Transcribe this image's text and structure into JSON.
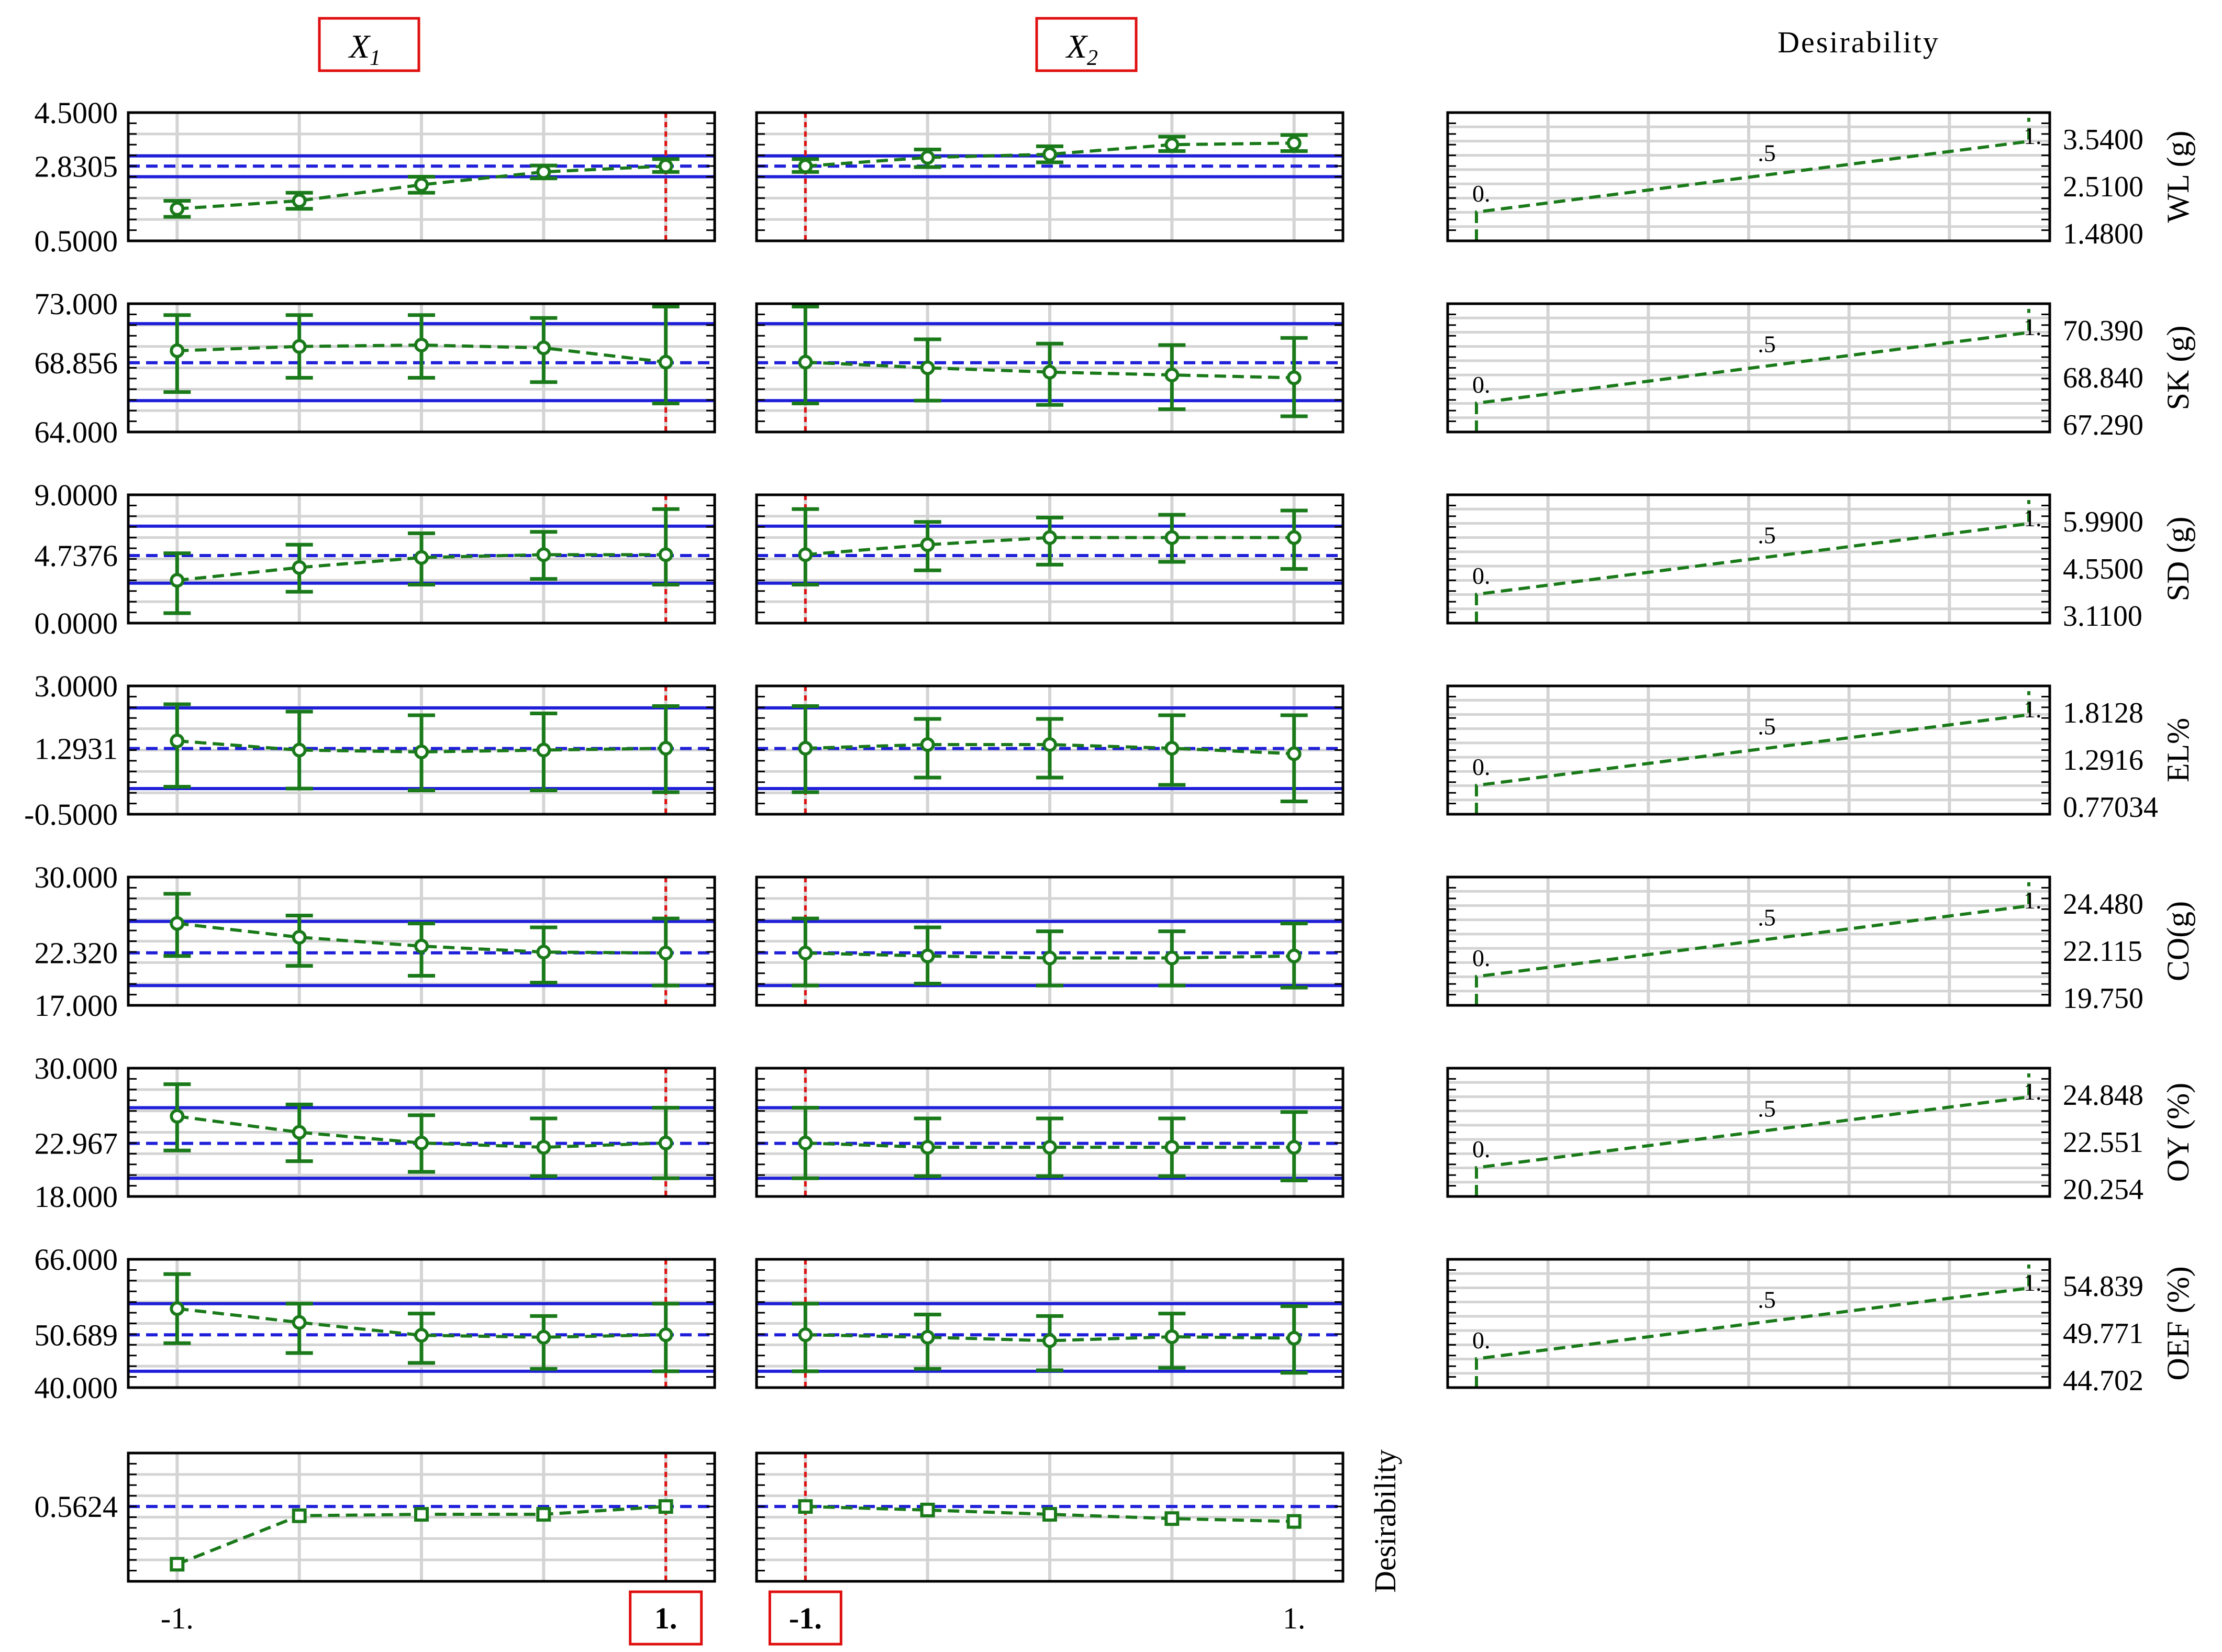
{
  "headers": {
    "x1": {
      "main": "X",
      "sub": "1"
    },
    "x2": {
      "main": "X",
      "sub": "2"
    },
    "desirability": "Desirability"
  },
  "overall_desirability_label": "Desirability",
  "x_ticks": [
    -1,
    -0.5,
    0,
    0.5,
    1
  ],
  "x_axis_labels": {
    "x1": [
      "-1.",
      "1."
    ],
    "x2": [
      "-1.",
      "1."
    ]
  },
  "current_settings": {
    "x1": 1,
    "x2": -1
  },
  "colors": {
    "series": "#1a7a1a",
    "limits": "#1f1fd9",
    "current": "#e01010",
    "highlight_box": "#e01010",
    "grid": "#d4d4d4",
    "frame": "#000000"
  },
  "chart_data": [
    {
      "type": "line",
      "response": "WL (g)",
      "ylim": [
        0.5,
        4.5
      ],
      "ytick_labels": [
        "4.5000",
        "2.8305",
        "0.5000"
      ],
      "ytick_values": [
        4.5,
        2.8305,
        0.5
      ],
      "current_prediction": 2.8305,
      "limits": [
        3.15,
        2.5
      ],
      "x1": {
        "x": [
          -1,
          -0.5,
          0,
          0.5,
          1
        ],
        "y": [
          1.5,
          1.75,
          2.25,
          2.65,
          2.83
        ],
        "lower": [
          1.25,
          1.5,
          2.0,
          2.45,
          2.65
        ],
        "upper": [
          1.75,
          2.0,
          2.5,
          2.85,
          3.05
        ]
      },
      "x2": {
        "x": [
          -1,
          -0.5,
          0,
          0.5,
          1
        ],
        "y": [
          2.83,
          3.1,
          3.2,
          3.5,
          3.55
        ],
        "lower": [
          2.65,
          2.8,
          2.95,
          3.3,
          3.3
        ],
        "upper": [
          3.05,
          3.35,
          3.45,
          3.75,
          3.8
        ]
      },
      "desirability": {
        "ticks": [
          "3.5400",
          "2.5100",
          "1.4800"
        ],
        "label_0": "0.",
        "label_mid": ".5",
        "label_1": "1."
      }
    },
    {
      "type": "line",
      "response": "SK (g)",
      "ylim": [
        64,
        73
      ],
      "ytick_labels": [
        "73.000",
        "68.856",
        "64.000"
      ],
      "ytick_values": [
        73,
        68.856,
        64
      ],
      "current_prediction": 68.856,
      "limits": [
        71.6,
        66.2
      ],
      "x1": {
        "x": [
          -1,
          -0.5,
          0,
          0.5,
          1
        ],
        "y": [
          69.7,
          70.0,
          70.1,
          69.9,
          68.9
        ],
        "lower": [
          66.8,
          67.8,
          67.8,
          67.5,
          66.0
        ],
        "upper": [
          72.2,
          72.2,
          72.2,
          72.0,
          72.8
        ]
      },
      "x2": {
        "x": [
          -1,
          -0.5,
          0,
          0.5,
          1
        ],
        "y": [
          68.9,
          68.5,
          68.2,
          68.0,
          67.8
        ],
        "lower": [
          66.0,
          66.2,
          65.9,
          65.6,
          65.1
        ],
        "upper": [
          72.8,
          70.5,
          70.2,
          70.1,
          70.6
        ]
      },
      "desirability": {
        "ticks": [
          "70.390",
          "68.840",
          "67.290"
        ],
        "label_0": "0.",
        "label_mid": ".5",
        "label_1": "1."
      }
    },
    {
      "type": "line",
      "response": "SD (g)",
      "ylim": [
        0,
        9
      ],
      "ytick_labels": [
        "9.0000",
        "4.7376",
        "0.0000"
      ],
      "ytick_values": [
        9,
        4.7376,
        0
      ],
      "current_prediction": 4.7376,
      "limits": [
        6.8,
        2.8
      ],
      "x1": {
        "x": [
          -1,
          -0.5,
          0,
          0.5,
          1
        ],
        "y": [
          3.0,
          3.9,
          4.6,
          4.8,
          4.8
        ],
        "lower": [
          0.7,
          2.2,
          2.7,
          3.1,
          2.7
        ],
        "upper": [
          4.9,
          5.5,
          6.3,
          6.4,
          8.0
        ]
      },
      "x2": {
        "x": [
          -1,
          -0.5,
          0,
          0.5,
          1
        ],
        "y": [
          4.8,
          5.5,
          6.0,
          6.0,
          6.0
        ],
        "lower": [
          2.7,
          3.7,
          4.1,
          4.3,
          3.8
        ],
        "upper": [
          8.0,
          7.1,
          7.4,
          7.6,
          7.9
        ]
      },
      "desirability": {
        "ticks": [
          "5.9900",
          "4.5500",
          "3.1100"
        ],
        "label_0": "0.",
        "label_mid": ".5",
        "label_1": "1."
      }
    },
    {
      "type": "line",
      "response": "EL%",
      "ylim": [
        -0.5,
        3
      ],
      "ytick_labels": [
        "3.0000",
        "1.2931",
        "-0.5000"
      ],
      "ytick_values": [
        3,
        1.2931,
        -0.5
      ],
      "current_prediction": 1.2931,
      "limits": [
        2.4,
        0.2
      ],
      "x1": {
        "x": [
          -1,
          -0.5,
          0,
          0.5,
          1
        ],
        "y": [
          1.5,
          1.25,
          1.2,
          1.25,
          1.3
        ],
        "lower": [
          0.25,
          0.2,
          0.15,
          0.15,
          0.1
        ],
        "upper": [
          2.5,
          2.3,
          2.2,
          2.25,
          2.45
        ]
      },
      "x2": {
        "x": [
          -1,
          -0.5,
          0,
          0.5,
          1
        ],
        "y": [
          1.3,
          1.4,
          1.4,
          1.3,
          1.15
        ],
        "lower": [
          0.1,
          0.5,
          0.5,
          0.3,
          -0.15
        ],
        "upper": [
          2.45,
          2.1,
          2.1,
          2.2,
          2.2
        ]
      },
      "desirability": {
        "ticks": [
          "1.8128",
          "1.2916",
          "0.77034"
        ],
        "label_0": "0.",
        "label_mid": ".5",
        "label_1": "1."
      }
    },
    {
      "type": "line",
      "response": "CO(g)",
      "ylim": [
        17,
        30
      ],
      "ytick_labels": [
        "30.000",
        "22.320",
        "17.000"
      ],
      "ytick_values": [
        30,
        22.32,
        17
      ],
      "current_prediction": 22.32,
      "limits": [
        25.5,
        19.0
      ],
      "x1": {
        "x": [
          -1,
          -0.5,
          0,
          0.5,
          1
        ],
        "y": [
          25.3,
          23.9,
          23.0,
          22.4,
          22.3
        ],
        "lower": [
          22.0,
          21.0,
          20.0,
          19.3,
          19.0
        ],
        "upper": [
          28.3,
          26.1,
          25.3,
          24.9,
          25.8
        ]
      },
      "x2": {
        "x": [
          -1,
          -0.5,
          0,
          0.5,
          1
        ],
        "y": [
          22.3,
          22.0,
          21.8,
          21.8,
          22.0
        ],
        "lower": [
          19.0,
          19.2,
          19.0,
          19.0,
          18.8
        ],
        "upper": [
          25.8,
          24.9,
          24.5,
          24.5,
          25.3
        ]
      },
      "desirability": {
        "ticks": [
          "24.480",
          "22.115",
          "19.750"
        ],
        "label_0": "0.",
        "label_mid": ".5",
        "label_1": "1."
      }
    },
    {
      "type": "line",
      "response": "OY (%)",
      "ylim": [
        18,
        30
      ],
      "ytick_labels": [
        "30.000",
        "22.967",
        "18.000"
      ],
      "ytick_values": [
        30,
        22.967,
        18
      ],
      "current_prediction": 22.967,
      "limits": [
        26.3,
        19.7
      ],
      "x1": {
        "x": [
          -1,
          -0.5,
          0,
          0.5,
          1
        ],
        "y": [
          25.5,
          24.0,
          23.0,
          22.6,
          23.0
        ],
        "lower": [
          22.3,
          21.3,
          20.3,
          19.9,
          19.7
        ],
        "upper": [
          28.5,
          26.6,
          25.6,
          25.3,
          26.3
        ]
      },
      "x2": {
        "x": [
          -1,
          -0.5,
          0,
          0.5,
          1
        ],
        "y": [
          23.0,
          22.6,
          22.6,
          22.6,
          22.6
        ],
        "lower": [
          19.7,
          19.9,
          19.9,
          19.9,
          19.5
        ],
        "upper": [
          26.3,
          25.3,
          25.3,
          25.3,
          25.9
        ]
      },
      "desirability": {
        "ticks": [
          "24.848",
          "22.551",
          "20.254"
        ],
        "label_0": "0.",
        "label_mid": ".5",
        "label_1": "1."
      }
    },
    {
      "type": "line",
      "response": "OEF (%)",
      "ylim": [
        40,
        66
      ],
      "ytick_labels": [
        "66.000",
        "50.689",
        "40.000"
      ],
      "ytick_values": [
        66,
        50.689,
        40
      ],
      "current_prediction": 50.689,
      "limits": [
        57.0,
        43.3
      ],
      "x1": {
        "x": [
          -1,
          -0.5,
          0,
          0.5,
          1
        ],
        "y": [
          56.0,
          53.2,
          50.6,
          50.2,
          50.7
        ],
        "lower": [
          49.0,
          47.0,
          45.0,
          43.8,
          43.3
        ],
        "upper": [
          63.0,
          57.0,
          55.0,
          54.5,
          57.0
        ]
      },
      "x2": {
        "x": [
          -1,
          -0.5,
          0,
          0.5,
          1
        ],
        "y": [
          50.7,
          50.2,
          49.5,
          50.3,
          50.0
        ],
        "lower": [
          43.3,
          43.8,
          43.5,
          44.0,
          43.0
        ],
        "upper": [
          57.0,
          54.8,
          54.5,
          55.0,
          56.5
        ]
      },
      "desirability": {
        "ticks": [
          "54.839",
          "49.771",
          "44.702"
        ],
        "label_0": "0.",
        "label_mid": ".5",
        "label_1": "1."
      }
    },
    {
      "type": "line",
      "response": "Desirability",
      "ylim": [
        0.3,
        0.75
      ],
      "ytick_labels": [
        "0.5624"
      ],
      "ytick_values": [
        0.5624
      ],
      "current_prediction": 0.5624,
      "x1": {
        "x": [
          -1,
          -0.5,
          0,
          0.5,
          1
        ],
        "y": [
          0.36,
          0.53,
          0.535,
          0.535,
          0.5624
        ]
      },
      "x2": {
        "x": [
          -1,
          -0.5,
          0,
          0.5,
          1
        ],
        "y": [
          0.5624,
          0.55,
          0.535,
          0.52,
          0.51
        ]
      }
    }
  ]
}
